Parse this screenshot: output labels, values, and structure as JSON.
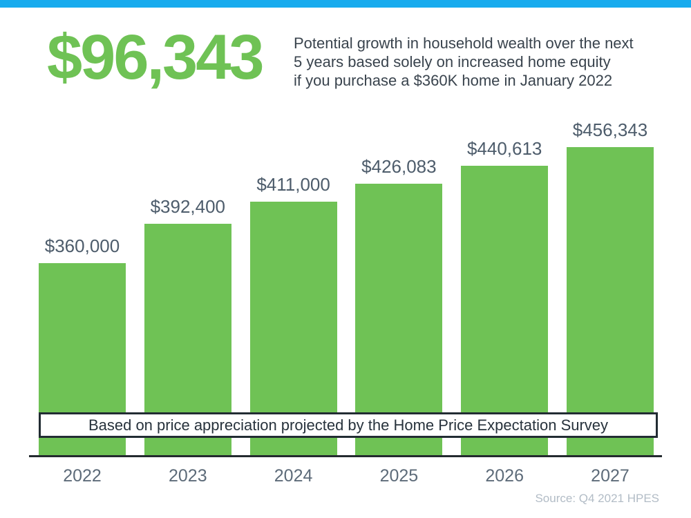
{
  "header": {
    "headline": "$96,343",
    "description_lines": [
      "Potential growth in household wealth over the next",
      "5 years based solely on increased home equity",
      "if you purchase a $360K home in January 2022"
    ]
  },
  "chart_data": {
    "type": "bar",
    "title": "",
    "categories": [
      "2022",
      "2023",
      "2024",
      "2025",
      "2026",
      "2027"
    ],
    "values": [
      360000,
      392400,
      411000,
      426083,
      440613,
      456343
    ],
    "value_labels": [
      "$360,000",
      "$392,400",
      "$411,000",
      "$426,083",
      "$440,613",
      "$456,343"
    ],
    "annotation": "Based on price appreciation projected by the Home Price Expectation Survey",
    "xlabel": "",
    "ylabel": "",
    "ylim": [
      200000,
      480000
    ],
    "grid": false,
    "legend": false,
    "bar_color": "#6fc255"
  },
  "footer": {
    "source": "Source: Q4 2021 HPES"
  },
  "colors": {
    "accent_blue": "#18abee",
    "bar_green": "#6fc255",
    "headline_green": "#6fc255",
    "value_label_slate": "#4d5c6b",
    "year_label_slate": "#5d6b79",
    "axis_dark": "#23292e",
    "source_gray": "#b2bcc6"
  }
}
